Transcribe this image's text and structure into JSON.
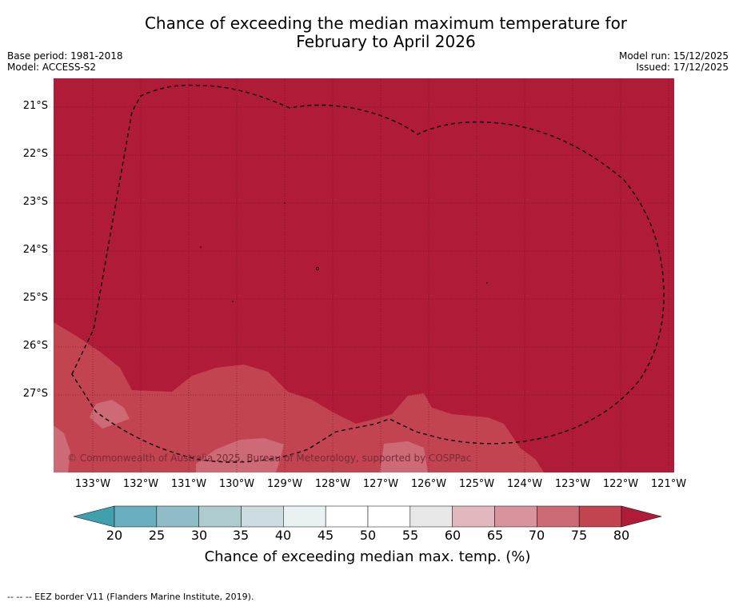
{
  "title_line1": "Chance of exceeding the median maximum temperature for",
  "title_line2": "February to April 2026",
  "base_period": "Base period: 1981-2018",
  "model": "Model: ACCESS-S2",
  "model_run": "Model run: 15/12/2025",
  "issued": "Issued: 17/12/2025",
  "copyright": "© Commonwealth of Australia 2025, Bureau of Meteorology, supported by COSPPac",
  "lat_labels": [
    "21°S",
    "22°S",
    "23°S",
    "24°S",
    "25°S",
    "26°S",
    "27°S"
  ],
  "lon_labels": [
    "133°W",
    "132°W",
    "131°W",
    "130°W",
    "129°W",
    "128°W",
    "127°W",
    "126°W",
    "125°W",
    "124°W",
    "123°W",
    "122°W",
    "121°W"
  ],
  "colorbar": {
    "ticks": [
      "20",
      "25",
      "30",
      "35",
      "40",
      "45",
      "50",
      "55",
      "60",
      "65",
      "70",
      "75",
      "80"
    ],
    "colors": [
      "#41a0ad",
      "#6aafbf",
      "#8fbcc7",
      "#aecbd0",
      "#ccdce0",
      "#eaf1f2",
      "#ffffff",
      "#ffffff",
      "#e8e8e8",
      "#e2b8bf",
      "#d8939d",
      "#cc6a76",
      "#c24451",
      "#b01c38"
    ],
    "title": "Chance of exceeding median max. temp. (%)"
  },
  "footer": "--  --  -- EEZ border V11 (Flanders Marine Institute, 2019)."
}
